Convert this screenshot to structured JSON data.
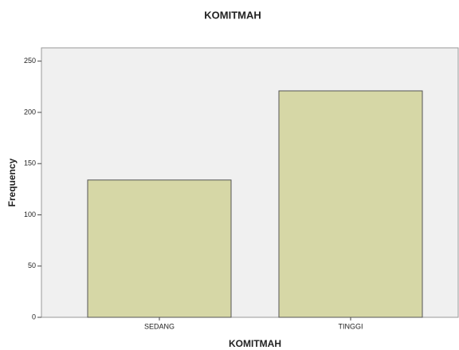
{
  "chart_data": {
    "type": "bar",
    "title": "KOMITMAH",
    "x_label": "KOMITMAH",
    "y_label": "Frequency",
    "categories": [
      "SEDANG",
      "TINGGI"
    ],
    "values": [
      134,
      221
    ],
    "color": "#d6d7a6",
    "ylim": [
      0,
      263
    ],
    "yticks": [
      0,
      50,
      100,
      150,
      200,
      250
    ]
  }
}
